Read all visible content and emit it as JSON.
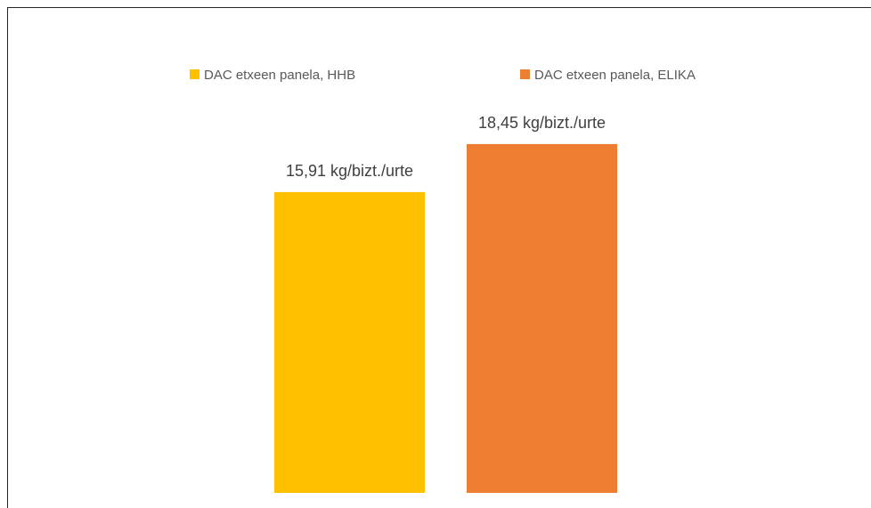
{
  "chart_data": {
    "type": "bar",
    "title": "",
    "xlabel": "",
    "ylabel": "",
    "ylim": [
      0,
      20
    ],
    "grid": false,
    "legend_position": "top",
    "series": [
      {
        "name": "DAC etxeen panela, HHB",
        "value": 15.91,
        "label": "15,91 kg/bizt./urte",
        "color": "#FFC000"
      },
      {
        "name": "DAC etxeen panela, ELIKA",
        "value": 18.45,
        "label": "18,45 kg/bizt./urte",
        "color": "#ED7D31"
      }
    ]
  }
}
